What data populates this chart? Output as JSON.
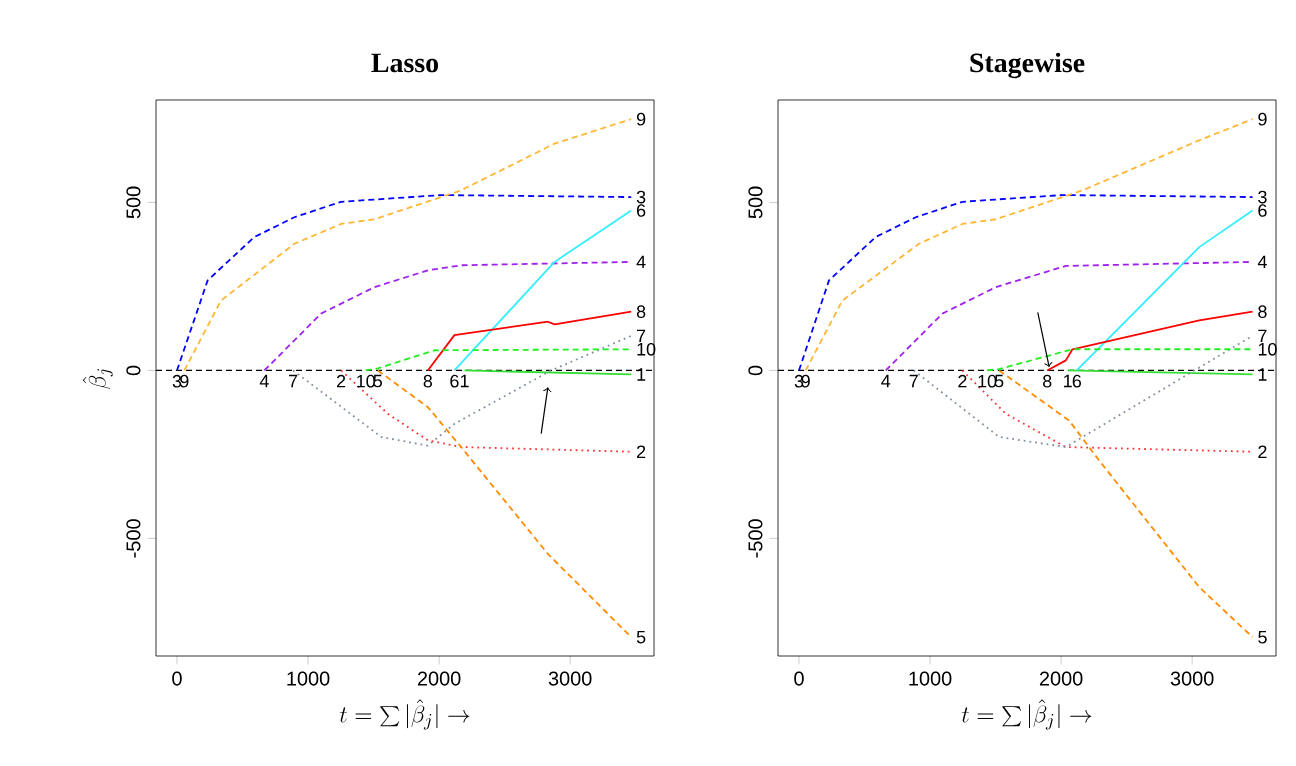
{
  "chart_data": [
    {
      "type": "line",
      "title": "Lasso",
      "xlabel": "t = \\sum |\\hat{\\beta}_j| \\rightarrow",
      "ylabel": "\\hat{\\beta}_j",
      "xlim": [
        -160,
        3640
      ],
      "ylim": [
        -850,
        805
      ],
      "xticks": [
        0,
        1000,
        2000,
        3000
      ],
      "yticks": [
        -500,
        0,
        500
      ],
      "ref_lines": [
        {
          "axis": "y",
          "value": 0,
          "color": "#000000",
          "line_style": "dashed"
        }
      ],
      "annotations": [
        {
          "text": "3",
          "x": 0,
          "y": 0
        },
        {
          "text": "9",
          "x": 56,
          "y": 0
        },
        {
          "text": "4",
          "x": 667,
          "y": 0
        },
        {
          "text": "7",
          "x": 886,
          "y": 0
        },
        {
          "text": "2",
          "x": 1252,
          "y": 0
        },
        {
          "text": "10",
          "x": 1440,
          "y": 0
        },
        {
          "text": "5",
          "x": 1532,
          "y": 0
        },
        {
          "text": "8",
          "x": 1914,
          "y": 0
        },
        {
          "text": "6",
          "x": 2117,
          "y": 0
        },
        {
          "text": "1",
          "x": 2194,
          "y": 0
        }
      ],
      "series": [
        {
          "name": "1",
          "color": "#33dd33",
          "line_style": "solid",
          "x": [
            2194,
            3466
          ],
          "values": [
            0,
            -12
          ]
        },
        {
          "name": "2",
          "color": "#ff3333",
          "line_style": "dotted",
          "x": [
            1252,
            1609,
            1914,
            2168,
            3466
          ],
          "values": [
            0,
            -129,
            -208,
            -228,
            -242
          ]
        },
        {
          "name": "3",
          "color": "#0000ff",
          "line_style": "dashed",
          "x": [
            0,
            234,
            590,
            896,
            1252,
            2016,
            3466
          ],
          "values": [
            0,
            268,
            397,
            456,
            502,
            522,
            516
          ]
        },
        {
          "name": "4",
          "color": "#a020f0",
          "line_style": "dashed",
          "x": [
            667,
            1099,
            1507,
            1914,
            2168,
            3466
          ],
          "values": [
            0,
            169,
            248,
            298,
            313,
            323
          ]
        },
        {
          "name": "5",
          "color": "#ff8c00",
          "line_style": "dashed",
          "x": [
            1532,
            1914,
            2168,
            2830,
            3466
          ],
          "values": [
            0,
            -109,
            -228,
            -546,
            -794
          ]
        },
        {
          "name": "6",
          "color": "#33eeff",
          "line_style": "solid",
          "x": [
            2117,
            2881,
            3466
          ],
          "values": [
            0,
            323,
            476
          ]
        },
        {
          "name": "7",
          "color": "#8090a0",
          "line_style": "dotted",
          "x": [
            886,
            1558,
            1914,
            2117,
            2856,
            3466
          ],
          "values": [
            0,
            -198,
            -224,
            -159,
            0,
            103
          ]
        },
        {
          "name": "8",
          "color": "#ff0000",
          "line_style": "solid",
          "x": [
            1914,
            2117,
            2830,
            2881,
            3466
          ],
          "values": [
            0,
            105,
            145,
            137,
            175
          ]
        },
        {
          "name": "9",
          "color": "#ffb733",
          "line_style": "dashed",
          "x": [
            56,
            336,
            896,
            1252,
            1507,
            2016,
            2168,
            2881,
            3466
          ],
          "values": [
            0,
            208,
            377,
            436,
            450,
            516,
            536,
            675,
            748
          ]
        },
        {
          "name": "10",
          "color": "#22ee22",
          "line_style": "dashed",
          "x": [
            1440,
            1532,
            1965,
            3466
          ],
          "values": [
            0,
            6,
            60,
            63
          ]
        }
      ]
    },
    {
      "type": "line",
      "title": "Stagewise",
      "xlabel": "t = \\sum |\\hat{\\beta}_j| \\rightarrow",
      "xlim": [
        -160,
        3640
      ],
      "ylim": [
        -850,
        805
      ],
      "xticks": [
        0,
        1000,
        2000,
        3000
      ],
      "yticks": [
        -500,
        0,
        500
      ],
      "ref_lines": [
        {
          "axis": "y",
          "value": 0,
          "color": "#000000",
          "line_style": "dashed"
        }
      ],
      "annotations": [
        {
          "text": "3",
          "x": 0,
          "y": 0
        },
        {
          "text": "9",
          "x": 51,
          "y": 0
        },
        {
          "text": "4",
          "x": 662,
          "y": 0
        },
        {
          "text": "7",
          "x": 876,
          "y": 0
        },
        {
          "text": "2",
          "x": 1247,
          "y": 0
        },
        {
          "text": "10",
          "x": 1435,
          "y": 0
        },
        {
          "text": "5",
          "x": 1527,
          "y": 0
        },
        {
          "text": "8",
          "x": 1894,
          "y": 0
        },
        {
          "text": "1",
          "x": 2050,
          "y": 0
        },
        {
          "text": "6",
          "x": 2120,
          "y": 0
        }
      ],
      "series": [
        {
          "name": "1",
          "color": "#33dd33",
          "line_style": "solid",
          "x": [
            2050,
            3461
          ],
          "values": [
            0,
            -12
          ]
        },
        {
          "name": "2",
          "color": "#ff3333",
          "line_style": "dotted",
          "x": [
            1247,
            1578,
            2036,
            3461
          ],
          "values": [
            0,
            -129,
            -228,
            -242
          ]
        },
        {
          "name": "3",
          "color": "#0000ff",
          "line_style": "dashed",
          "x": [
            0,
            229,
            585,
            891,
            1247,
            2011,
            3461
          ],
          "values": [
            0,
            268,
            397,
            456,
            502,
            522,
            516
          ]
        },
        {
          "name": "4",
          "color": "#a020f0",
          "line_style": "dashed",
          "x": [
            662,
            1094,
            1502,
            2036,
            3461
          ],
          "values": [
            0,
            169,
            248,
            311,
            323
          ]
        },
        {
          "name": "5",
          "color": "#ff8c00",
          "line_style": "dashed",
          "x": [
            1527,
            2061,
            2290,
            3054,
            3461
          ],
          "values": [
            0,
            -149,
            -268,
            -645,
            -794
          ]
        },
        {
          "name": "6",
          "color": "#33eeff",
          "line_style": "solid",
          "x": [
            2120,
            3054,
            3461
          ],
          "values": [
            0,
            367,
            476
          ]
        },
        {
          "name": "7",
          "color": "#8090a0",
          "line_style": "dotted",
          "x": [
            876,
            1527,
            2036,
            3461
          ],
          "values": [
            0,
            -198,
            -228,
            103
          ]
        },
        {
          "name": "8",
          "color": "#ff0000",
          "line_style": "solid",
          "x": [
            1894,
            2036,
            2087,
            3054,
            3461
          ],
          "values": [
            0,
            30,
            63,
            149,
            175
          ]
        },
        {
          "name": "9",
          "color": "#ffb733",
          "line_style": "dashed",
          "x": [
            51,
            331,
            916,
            1247,
            1502,
            2011,
            2163,
            3054,
            3461
          ],
          "values": [
            0,
            208,
            377,
            436,
            450,
            516,
            536,
            685,
            748
          ]
        },
        {
          "name": "10",
          "color": "#22ee22",
          "line_style": "dashed",
          "x": [
            1435,
            1527,
            2087,
            3461
          ],
          "values": [
            0,
            4,
            63,
            63
          ]
        }
      ]
    }
  ]
}
